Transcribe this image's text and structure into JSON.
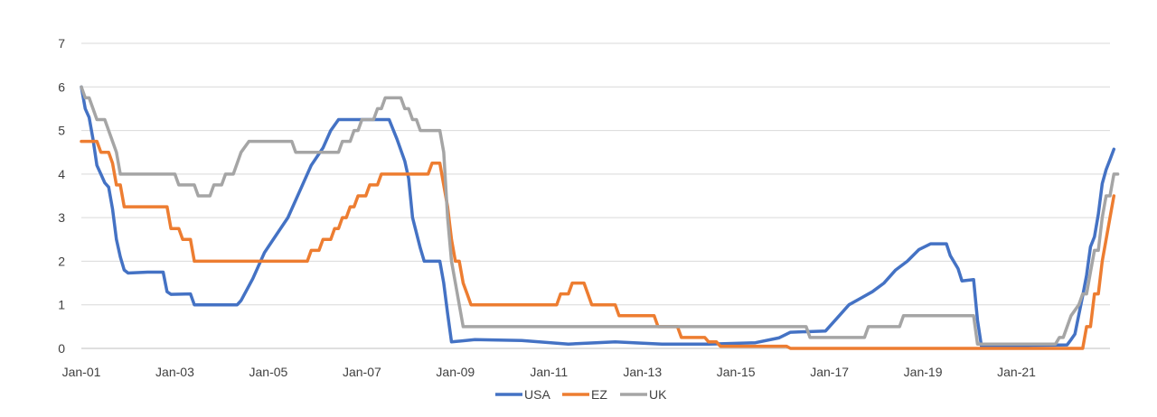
{
  "chart_data": {
    "type": "line",
    "title": "",
    "xlabel": "",
    "ylabel": "",
    "ylim": [
      0,
      7
    ],
    "yticks": [
      "0",
      "1",
      "2",
      "3",
      "4",
      "5",
      "6",
      "7"
    ],
    "xticks": [
      "Jan-01",
      "Jan-03",
      "Jan-05",
      "Jan-07",
      "Jan-09",
      "Jan-11",
      "Jan-13",
      "Jan-15",
      "Jan-17",
      "Jan-19",
      "Jan-21"
    ],
    "xrange": [
      "2001-01",
      "2022-12"
    ],
    "grid": "horizontal",
    "legend": "bottom-center",
    "colors": {
      "USA": "#4472c4",
      "EZ": "#ed7d31",
      "UK": "#a5a5a5",
      "grid": "#d9d9d9",
      "axis": "#bfbfbf"
    },
    "series": [
      {
        "name": "USA",
        "points": [
          [
            "2001-01",
            6.0
          ],
          [
            "2001-02",
            5.5
          ],
          [
            "2001-03",
            5.3
          ],
          [
            "2001-04",
            4.8
          ],
          [
            "2001-05",
            4.2
          ],
          [
            "2001-06",
            4.0
          ],
          [
            "2001-07",
            3.8
          ],
          [
            "2001-08",
            3.7
          ],
          [
            "2001-09",
            3.2
          ],
          [
            "2001-10",
            2.5
          ],
          [
            "2001-11",
            2.1
          ],
          [
            "2001-12",
            1.8
          ],
          [
            "2002-01",
            1.73
          ],
          [
            "2002-06",
            1.75
          ],
          [
            "2002-10",
            1.75
          ],
          [
            "2002-11",
            1.3
          ],
          [
            "2002-12",
            1.24
          ],
          [
            "2003-05",
            1.25
          ],
          [
            "2003-06",
            1.0
          ],
          [
            "2003-12",
            1.0
          ],
          [
            "2004-05",
            1.0
          ],
          [
            "2004-06",
            1.1
          ],
          [
            "2004-09",
            1.6
          ],
          [
            "2004-12",
            2.2
          ],
          [
            "2005-03",
            2.6
          ],
          [
            "2005-06",
            3.0
          ],
          [
            "2005-09",
            3.6
          ],
          [
            "2005-12",
            4.2
          ],
          [
            "2006-03",
            4.6
          ],
          [
            "2006-05",
            5.0
          ],
          [
            "2006-07",
            5.25
          ],
          [
            "2007-08",
            5.25
          ],
          [
            "2007-10",
            4.8
          ],
          [
            "2007-12",
            4.3
          ],
          [
            "2008-01",
            3.9
          ],
          [
            "2008-02",
            3.0
          ],
          [
            "2008-04",
            2.3
          ],
          [
            "2008-05",
            2.0
          ],
          [
            "2008-09",
            2.0
          ],
          [
            "2008-10",
            1.5
          ],
          [
            "2008-11",
            0.8
          ],
          [
            "2008-12",
            0.15
          ],
          [
            "2009-06",
            0.2
          ],
          [
            "2010-06",
            0.18
          ],
          [
            "2011-06",
            0.1
          ],
          [
            "2012-06",
            0.15
          ],
          [
            "2013-06",
            0.1
          ],
          [
            "2014-06",
            0.1
          ],
          [
            "2015-06",
            0.13
          ],
          [
            "2015-12",
            0.24
          ],
          [
            "2016-03",
            0.37
          ],
          [
            "2016-12",
            0.4
          ],
          [
            "2017-03",
            0.7
          ],
          [
            "2017-06",
            1.0
          ],
          [
            "2017-09",
            1.15
          ],
          [
            "2017-12",
            1.3
          ],
          [
            "2018-03",
            1.5
          ],
          [
            "2018-06",
            1.8
          ],
          [
            "2018-09",
            2.0
          ],
          [
            "2018-12",
            2.27
          ],
          [
            "2019-03",
            2.4
          ],
          [
            "2019-07",
            2.4
          ],
          [
            "2019-08",
            2.13
          ],
          [
            "2019-10",
            1.83
          ],
          [
            "2019-11",
            1.55
          ],
          [
            "2020-02",
            1.58
          ],
          [
            "2020-03",
            0.65
          ],
          [
            "2020-04",
            0.05
          ],
          [
            "2021-06",
            0.07
          ],
          [
            "2022-02",
            0.08
          ],
          [
            "2022-03",
            0.2
          ],
          [
            "2022-04",
            0.33
          ],
          [
            "2022-05",
            0.77
          ],
          [
            "2022-06",
            1.21
          ],
          [
            "2022-07",
            1.68
          ],
          [
            "2022-08",
            2.33
          ],
          [
            "2022-09",
            2.56
          ],
          [
            "2022-10",
            3.08
          ],
          [
            "2022-11",
            3.78
          ],
          [
            "2022-12",
            4.1
          ],
          [
            "2023-01",
            4.33
          ],
          [
            "2023-02",
            4.57
          ]
        ]
      },
      {
        "name": "EZ",
        "points": [
          [
            "2001-01",
            4.75
          ],
          [
            "2001-05",
            4.75
          ],
          [
            "2001-06",
            4.5
          ],
          [
            "2001-08",
            4.5
          ],
          [
            "2001-09",
            4.25
          ],
          [
            "2001-10",
            3.75
          ],
          [
            "2001-11",
            3.75
          ],
          [
            "2001-12",
            3.25
          ],
          [
            "2002-11",
            3.25
          ],
          [
            "2002-12",
            2.75
          ],
          [
            "2003-02",
            2.75
          ],
          [
            "2003-03",
            2.5
          ],
          [
            "2003-05",
            2.5
          ],
          [
            "2003-06",
            2.0
          ],
          [
            "2005-11",
            2.0
          ],
          [
            "2005-12",
            2.25
          ],
          [
            "2006-02",
            2.25
          ],
          [
            "2006-03",
            2.5
          ],
          [
            "2006-05",
            2.5
          ],
          [
            "2006-06",
            2.75
          ],
          [
            "2006-07",
            2.75
          ],
          [
            "2006-08",
            3.0
          ],
          [
            "2006-09",
            3.0
          ],
          [
            "2006-10",
            3.25
          ],
          [
            "2006-11",
            3.25
          ],
          [
            "2006-12",
            3.5
          ],
          [
            "2007-02",
            3.5
          ],
          [
            "2007-03",
            3.75
          ],
          [
            "2007-05",
            3.75
          ],
          [
            "2007-06",
            4.0
          ],
          [
            "2008-06",
            4.0
          ],
          [
            "2008-07",
            4.25
          ],
          [
            "2008-09",
            4.25
          ],
          [
            "2008-10",
            3.75
          ],
          [
            "2008-11",
            3.25
          ],
          [
            "2008-12",
            2.5
          ],
          [
            "2009-01",
            2.0
          ],
          [
            "2009-02",
            2.0
          ],
          [
            "2009-03",
            1.5
          ],
          [
            "2009-04",
            1.25
          ],
          [
            "2009-05",
            1.0
          ],
          [
            "2011-03",
            1.0
          ],
          [
            "2011-04",
            1.25
          ],
          [
            "2011-06",
            1.25
          ],
          [
            "2011-07",
            1.5
          ],
          [
            "2011-10",
            1.5
          ],
          [
            "2011-11",
            1.25
          ],
          [
            "2011-12",
            1.0
          ],
          [
            "2012-06",
            1.0
          ],
          [
            "2012-07",
            0.75
          ],
          [
            "2013-04",
            0.75
          ],
          [
            "2013-05",
            0.5
          ],
          [
            "2013-10",
            0.5
          ],
          [
            "2013-11",
            0.25
          ],
          [
            "2014-05",
            0.25
          ],
          [
            "2014-06",
            0.15
          ],
          [
            "2014-08",
            0.15
          ],
          [
            "2014-09",
            0.05
          ],
          [
            "2016-02",
            0.05
          ],
          [
            "2016-03",
            0.0
          ],
          [
            "2022-06",
            0.0
          ],
          [
            "2022-07",
            0.5
          ],
          [
            "2022-08",
            0.5
          ],
          [
            "2022-09",
            1.25
          ],
          [
            "2022-10",
            1.25
          ],
          [
            "2022-11",
            2.0
          ],
          [
            "2022-12",
            2.5
          ],
          [
            "2023-01",
            3.0
          ],
          [
            "2023-02",
            3.5
          ]
        ]
      },
      {
        "name": "UK",
        "points": [
          [
            "2001-01",
            6.0
          ],
          [
            "2001-02",
            5.75
          ],
          [
            "2001-03",
            5.75
          ],
          [
            "2001-04",
            5.5
          ],
          [
            "2001-05",
            5.25
          ],
          [
            "2001-07",
            5.25
          ],
          [
            "2001-08",
            5.0
          ],
          [
            "2001-09",
            4.75
          ],
          [
            "2001-10",
            4.5
          ],
          [
            "2001-11",
            4.0
          ],
          [
            "2003-01",
            4.0
          ],
          [
            "2003-02",
            3.75
          ],
          [
            "2003-06",
            3.75
          ],
          [
            "2003-07",
            3.5
          ],
          [
            "2003-10",
            3.5
          ],
          [
            "2003-11",
            3.75
          ],
          [
            "2004-01",
            3.75
          ],
          [
            "2004-02",
            4.0
          ],
          [
            "2004-04",
            4.0
          ],
          [
            "2004-05",
            4.25
          ],
          [
            "2004-06",
            4.5
          ],
          [
            "2004-08",
            4.75
          ],
          [
            "2005-07",
            4.75
          ],
          [
            "2005-08",
            4.5
          ],
          [
            "2006-07",
            4.5
          ],
          [
            "2006-08",
            4.75
          ],
          [
            "2006-10",
            4.75
          ],
          [
            "2006-11",
            5.0
          ],
          [
            "2006-12",
            5.0
          ],
          [
            "2007-01",
            5.25
          ],
          [
            "2007-04",
            5.25
          ],
          [
            "2007-05",
            5.5
          ],
          [
            "2007-06",
            5.5
          ],
          [
            "2007-07",
            5.75
          ],
          [
            "2007-11",
            5.75
          ],
          [
            "2007-12",
            5.5
          ],
          [
            "2008-01",
            5.5
          ],
          [
            "2008-02",
            5.25
          ],
          [
            "2008-03",
            5.25
          ],
          [
            "2008-04",
            5.0
          ],
          [
            "2008-09",
            5.0
          ],
          [
            "2008-10",
            4.5
          ],
          [
            "2008-11",
            3.0
          ],
          [
            "2008-12",
            2.0
          ],
          [
            "2009-01",
            1.5
          ],
          [
            "2009-02",
            1.0
          ],
          [
            "2009-03",
            0.5
          ],
          [
            "2016-07",
            0.5
          ],
          [
            "2016-08",
            0.25
          ],
          [
            "2017-10",
            0.25
          ],
          [
            "2017-11",
            0.5
          ],
          [
            "2018-07",
            0.5
          ],
          [
            "2018-08",
            0.75
          ],
          [
            "2020-02",
            0.75
          ],
          [
            "2020-03",
            0.1
          ],
          [
            "2021-11",
            0.1
          ],
          [
            "2021-12",
            0.25
          ],
          [
            "2022-01",
            0.25
          ],
          [
            "2022-02",
            0.5
          ],
          [
            "2022-03",
            0.75
          ],
          [
            "2022-05",
            1.0
          ],
          [
            "2022-06",
            1.25
          ],
          [
            "2022-07",
            1.25
          ],
          [
            "2022-08",
            1.75
          ],
          [
            "2022-09",
            2.25
          ],
          [
            "2022-10",
            2.25
          ],
          [
            "2022-11",
            3.0
          ],
          [
            "2022-12",
            3.5
          ],
          [
            "2023-01",
            3.5
          ],
          [
            "2023-02",
            4.0
          ],
          [
            "2023-03",
            4.0
          ]
        ]
      }
    ]
  }
}
